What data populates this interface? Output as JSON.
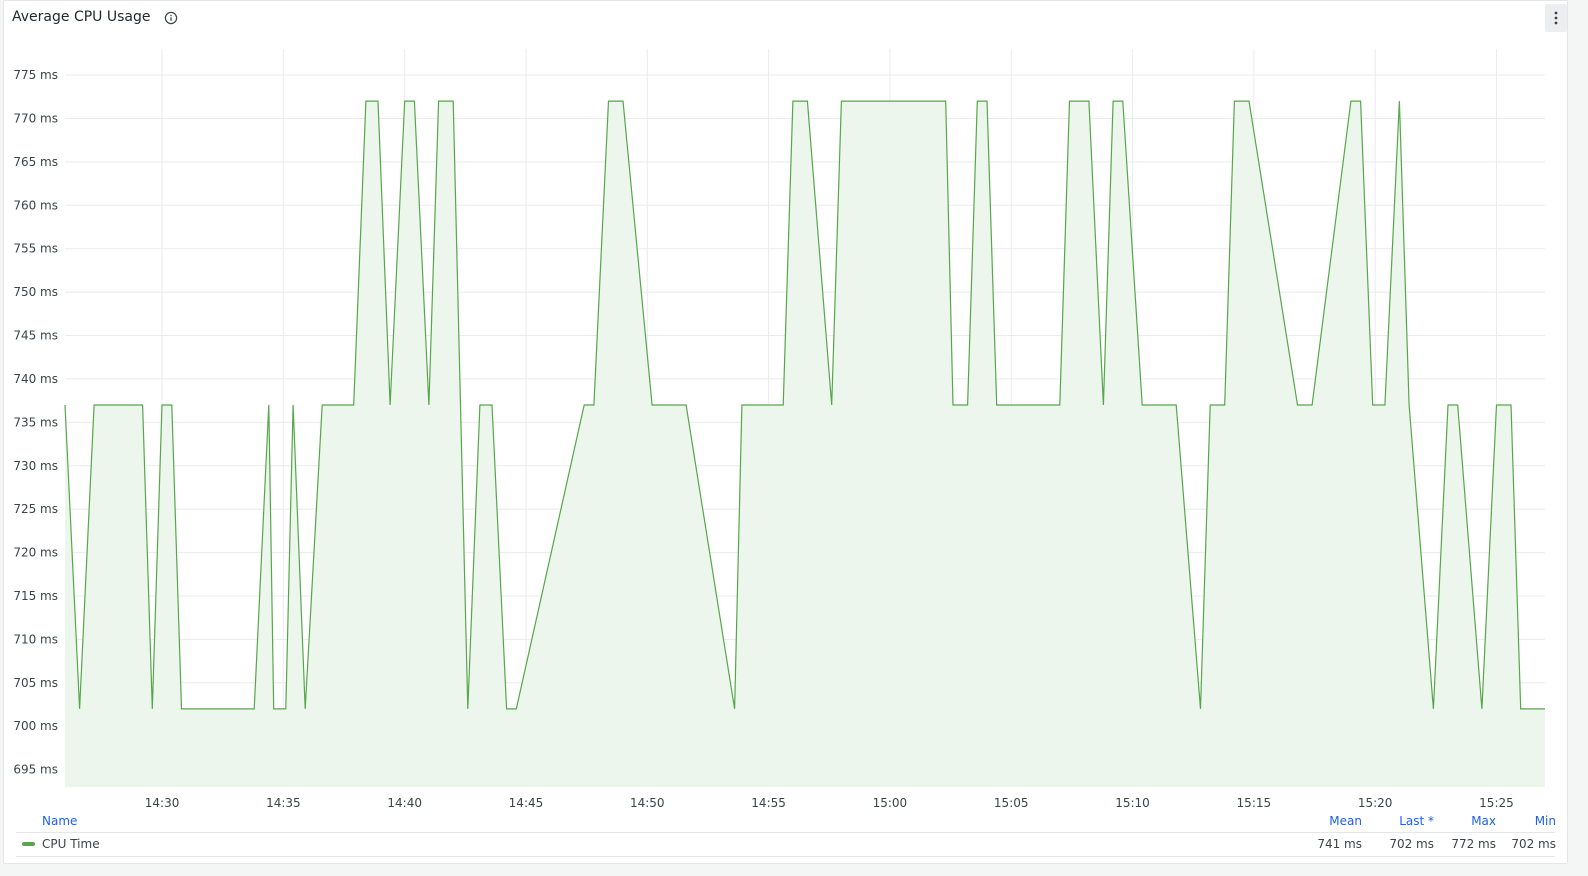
{
  "panel": {
    "title": "Average CPU Usage",
    "info_icon": "info-icon",
    "menu_icon": "vertical-ellipsis-icon"
  },
  "colors": {
    "series": "#56a64b",
    "fill": "#edf6ec",
    "grid": "#e9ebed",
    "link": "#1f62e0"
  },
  "legend": {
    "headers": {
      "name": "Name",
      "mean": "Mean",
      "last": "Last *",
      "max": "Max",
      "min": "Min"
    },
    "rows": [
      {
        "name": "CPU Time",
        "mean": "741 ms",
        "last": "702 ms",
        "max": "772 ms",
        "min": "702 ms"
      }
    ]
  },
  "chart_data": {
    "type": "area",
    "title": "Average CPU Usage",
    "xlabel": "",
    "ylabel": "",
    "y_unit": "ms",
    "ylim": [
      693,
      778
    ],
    "y_ticks": [
      "695 ms",
      "700 ms",
      "705 ms",
      "710 ms",
      "715 ms",
      "720 ms",
      "725 ms",
      "730 ms",
      "735 ms",
      "740 ms",
      "745 ms",
      "750 ms",
      "755 ms",
      "760 ms",
      "765 ms",
      "770 ms",
      "775 ms"
    ],
    "x_ticks": [
      "14:30",
      "14:35",
      "14:40",
      "14:45",
      "14:50",
      "14:55",
      "15:00",
      "15:05",
      "15:10",
      "15:15",
      "15:20",
      "15:25"
    ],
    "x_tick_minutes": [
      870,
      875,
      880,
      885,
      890,
      895,
      900,
      905,
      910,
      915,
      920,
      925
    ],
    "xlim_minutes": [
      866,
      927
    ],
    "grid": true,
    "legend": "bottom",
    "series": [
      {
        "name": "CPU Time",
        "x_minutes": [
          866.0,
          866.6,
          867.2,
          868.2,
          869.2,
          869.6,
          870.0,
          870.4,
          870.8,
          871.0,
          873.8,
          874.4,
          874.6,
          875.1,
          875.4,
          875.9,
          876.6,
          876.9,
          877.9,
          878.4,
          878.9,
          879.4,
          880.0,
          880.4,
          881.0,
          881.4,
          882.0,
          882.6,
          883.1,
          883.6,
          884.2,
          884.6,
          887.4,
          887.8,
          888.4,
          889.0,
          890.2,
          890.6,
          891.6,
          893.6,
          893.9,
          894.6,
          895.6,
          896.0,
          896.6,
          897.6,
          898.0,
          902.3,
          902.6,
          903.2,
          903.6,
          904.0,
          904.4,
          907.0,
          907.4,
          907.8,
          908.2,
          908.8,
          909.2,
          909.6,
          910.4,
          910.8,
          911.8,
          912.8,
          913.2,
          913.8,
          914.2,
          914.8,
          916.8,
          917.4,
          919.0,
          919.4,
          919.9,
          920.4,
          921.0,
          921.4,
          922.4,
          923.0,
          923.4,
          924.4,
          925.0,
          925.6,
          926.0,
          927.0
        ],
        "values": [
          737,
          702,
          737,
          737,
          737,
          702,
          737,
          737,
          702,
          702,
          702,
          737,
          702,
          702,
          737,
          702,
          737,
          737,
          737,
          772,
          772,
          737,
          772,
          772,
          737,
          772,
          772,
          702,
          737,
          737,
          702,
          702,
          737,
          737,
          772,
          772,
          737,
          737,
          737,
          702,
          737,
          737,
          737,
          772,
          772,
          737,
          772,
          772,
          737,
          737,
          772,
          772,
          737,
          737,
          772,
          772,
          772,
          737,
          772,
          772,
          737,
          737,
          737,
          702,
          737,
          737,
          772,
          772,
          737,
          737,
          772,
          772,
          737,
          737,
          772,
          737,
          702,
          737,
          737,
          702,
          737,
          737,
          702,
          702
        ]
      }
    ]
  }
}
